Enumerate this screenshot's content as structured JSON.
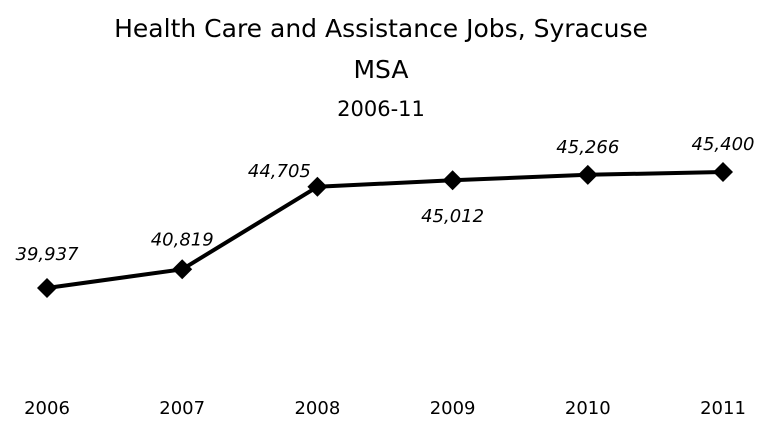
{
  "chart_data": {
    "type": "line",
    "title": "Health Care and Assistance Jobs, Syracuse MSA",
    "subtitle": "2006-11",
    "x": [
      "2006",
      "2007",
      "2008",
      "2009",
      "2010",
      "2011"
    ],
    "series": [
      {
        "values": [
          39937,
          40819,
          44705,
          45012,
          45266,
          45400
        ],
        "labels": [
          "39,937",
          "40,819",
          "44,705",
          "45,012",
          "45,266",
          "45,400"
        ],
        "color": "#000000",
        "marker": "diamond"
      }
    ],
    "xlabel": "",
    "ylabel": "",
    "grid": false,
    "legend": "none"
  }
}
